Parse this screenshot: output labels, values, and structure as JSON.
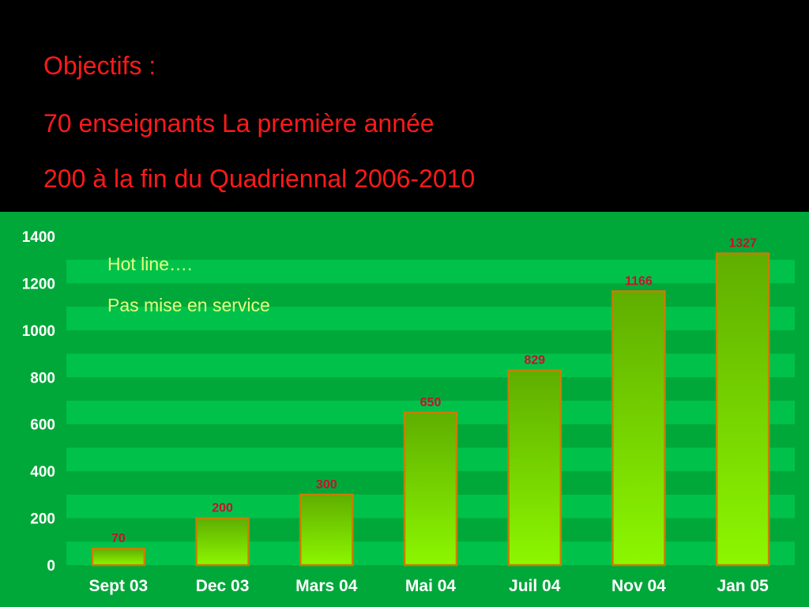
{
  "header": {
    "lines": [
      "Objectifs :",
      "70 enseignants La première année",
      "200 à la fin du Quadriennal 2006-2010"
    ]
  },
  "annotations": {
    "line1": "Hot line….",
    "line2": "Pas mise en service"
  },
  "colors": {
    "background": "#000000",
    "header_text": "#ff1a1a",
    "panel": "#00a83a",
    "band": "#00c24a",
    "bar_top": "#5fae00",
    "bar_bottom": "#8cf700",
    "bar_edge": "#c87e00",
    "data_label": "#c8102e",
    "annotation_text": "#e6ff80",
    "axis_text": "#ffffff"
  },
  "chart_data": {
    "type": "bar",
    "categories": [
      "Sept 03",
      "Dec 03",
      "Mars 04",
      "Mai 04",
      "Juil 04",
      "Nov 04",
      "Jan 05"
    ],
    "values": [
      70,
      200,
      300,
      650,
      829,
      1166,
      1327
    ],
    "yticks": [
      0,
      200,
      400,
      600,
      800,
      1000,
      1200,
      1400
    ],
    "ylim": [
      0,
      1400
    ],
    "title": "",
    "xlabel": "",
    "ylabel": "",
    "grid": true,
    "legend": false
  }
}
